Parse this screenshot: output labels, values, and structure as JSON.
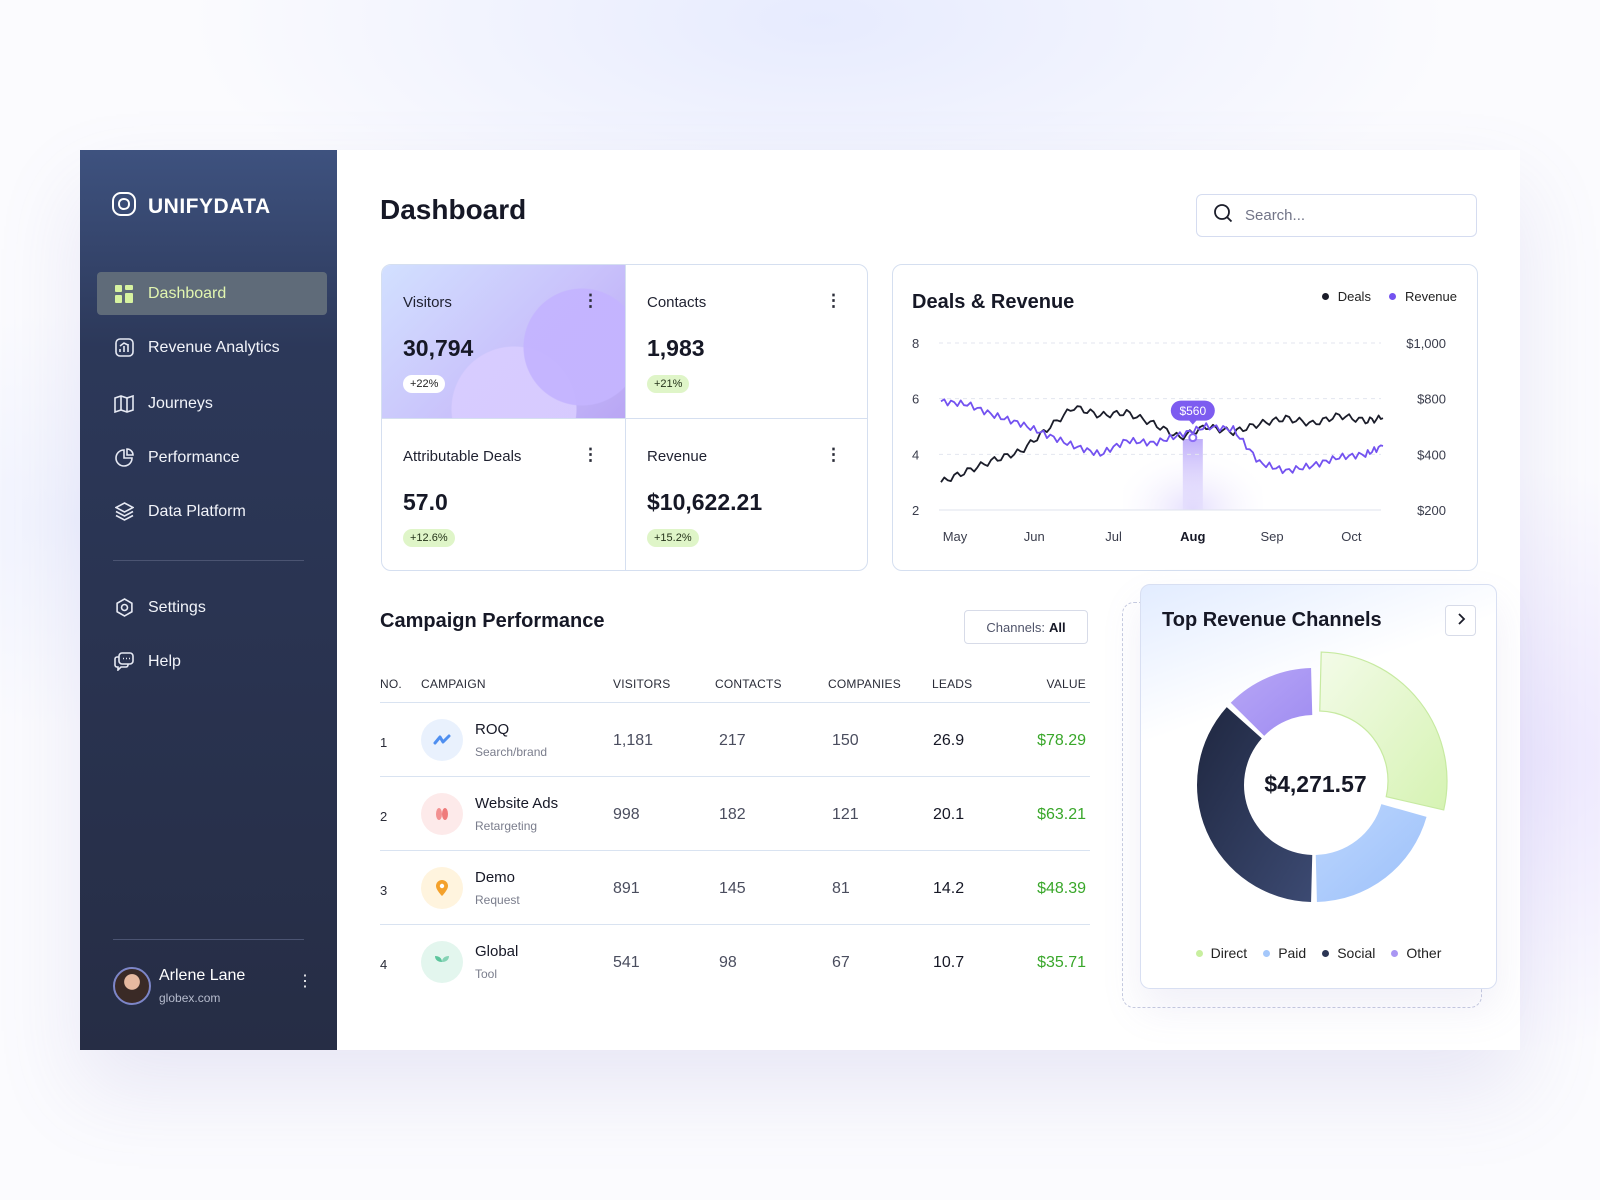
{
  "brand": {
    "name": "UNIFYDATA"
  },
  "sidebar": {
    "items": [
      {
        "label": "Dashboard",
        "icon": "grid-icon"
      },
      {
        "label": "Revenue Analytics",
        "icon": "chart-icon"
      },
      {
        "label": "Journeys",
        "icon": "map-icon"
      },
      {
        "label": "Performance",
        "icon": "pie-icon"
      },
      {
        "label": "Data Platform",
        "icon": "layers-icon"
      }
    ],
    "bottom_items": [
      {
        "label": "Settings",
        "icon": "gear-icon"
      },
      {
        "label": "Help",
        "icon": "chat-icon"
      }
    ]
  },
  "user": {
    "name": "Arlene Lane",
    "email": "globex.com"
  },
  "page": {
    "title": "Dashboard"
  },
  "search": {
    "placeholder": "Search..."
  },
  "stats": [
    {
      "label": "Visitors",
      "value": "30,794",
      "change": "+22%"
    },
    {
      "label": "Contacts",
      "value": "1,983",
      "change": "+21%"
    },
    {
      "label": "Attributable Deals",
      "value": "57.0",
      "change": "+12.6%"
    },
    {
      "label": "Revenue",
      "value": "$10,622.21",
      "change": "+15.2%"
    }
  ],
  "chart_data": {
    "type": "line",
    "title": "Deals & Revenue",
    "categories": [
      "May",
      "Jun",
      "Jul",
      "Aug",
      "Sep",
      "Oct"
    ],
    "highlight_category": "Aug",
    "tooltip": "$560",
    "y_left": {
      "ticks": [
        "8",
        "6",
        "4",
        "2"
      ],
      "ylim": [
        2,
        8
      ]
    },
    "y_right": {
      "ticks": [
        "$1,000",
        "$800",
        "$400",
        "$200"
      ]
    },
    "grid": "dashed horizontal",
    "legend": "top-right",
    "series": [
      {
        "name": "Deals",
        "color": "#1b1d2a",
        "axis": "left",
        "x": [
          0,
          0.33,
          0.67,
          1,
          1.33,
          1.67,
          2,
          2.33,
          2.67,
          3,
          3.33,
          3.67,
          4,
          4.33,
          4.67,
          5,
          5.33,
          5.55
        ],
        "values": [
          3.0,
          3.4,
          3.8,
          4.1,
          4.9,
          5.7,
          5.4,
          5.5,
          5.1,
          4.6,
          5.0,
          4.8,
          5.1,
          5.3,
          5.1,
          5.4,
          5.2,
          5.3
        ]
      },
      {
        "name": "Revenue",
        "color": "#7352f0",
        "axis": "left",
        "x": [
          0,
          0.33,
          0.67,
          1,
          1.33,
          1.67,
          2,
          2.33,
          2.67,
          3,
          3.33,
          3.67,
          4,
          4.33,
          4.67,
          5,
          5.33,
          5.55
        ],
        "values": [
          5.9,
          5.8,
          5.4,
          5.1,
          4.7,
          4.3,
          4.0,
          4.5,
          4.4,
          4.7,
          5.0,
          4.9,
          3.7,
          3.4,
          3.6,
          3.9,
          4.0,
          4.3
        ]
      }
    ]
  },
  "campaigns": {
    "title": "Campaign Performance",
    "filter_label": "Channels:",
    "filter_value": "All",
    "columns": [
      "NO.",
      "CAMPAIGN",
      "VISITORS",
      "CONTACTS",
      "COMPANIES",
      "LEADS",
      "VALUE"
    ],
    "rows": [
      {
        "no": "1",
        "name": "ROQ",
        "sub": "Search/brand",
        "visitors": "1,181",
        "contacts": "217",
        "companies": "150",
        "leads": "26.9",
        "value": "$78.29",
        "icon": "roq-logo-icon",
        "icon_bg": "#e9f1fd",
        "icon_color": "#4f8ff0"
      },
      {
        "no": "2",
        "name": "Website Ads",
        "sub": "Retargeting",
        "visitors": "998",
        "contacts": "182",
        "companies": "121",
        "leads": "20.1",
        "value": "$63.21",
        "icon": "leaf-logo-icon",
        "icon_bg": "#fdeaea",
        "icon_color": "#ef7b7b"
      },
      {
        "no": "3",
        "name": "Demo",
        "sub": "Request",
        "visitors": "891",
        "contacts": "145",
        "companies": "81",
        "leads": "14.2",
        "value": "$48.39",
        "icon": "pin-logo-icon",
        "icon_bg": "#fff4de",
        "icon_color": "#f4a12b"
      },
      {
        "no": "4",
        "name": "Global",
        "sub": "Tool",
        "visitors": "541",
        "contacts": "98",
        "companies": "67",
        "leads": "10.7",
        "value": "$35.71",
        "icon": "sprout-logo-icon",
        "icon_bg": "#e3f6ee",
        "icon_color": "#5cc59c"
      }
    ]
  },
  "channels": {
    "title": "Top Revenue Channels",
    "total": "$4,271.57",
    "chart_data": {
      "type": "pie",
      "labels": [
        "Direct",
        "Paid",
        "Social",
        "Other"
      ],
      "values": [
        29,
        21,
        37,
        13
      ],
      "colors": [
        "#c8ef9f",
        "#a5c8fb",
        "#2b3554",
        "#a996f3"
      ]
    }
  }
}
